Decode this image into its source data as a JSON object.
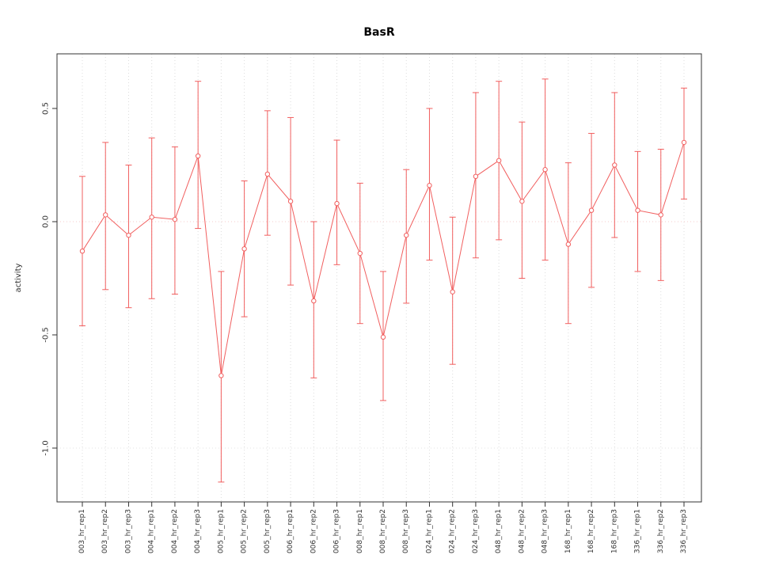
{
  "chart_data": {
    "type": "line",
    "title": "BasR",
    "xlabel": "",
    "ylabel": "activity",
    "ylim": [
      -1.25,
      0.75
    ],
    "grid": true,
    "legend": "none",
    "line_color": "#f15f5f",
    "grid_color": "#dcdcdc",
    "axis_color": "#333333",
    "yticks": [
      {
        "value": 0.5,
        "label": "0.5"
      },
      {
        "value": 0.0,
        "label": "0.0"
      },
      {
        "value": -0.5,
        "label": "-0.5"
      },
      {
        "value": -1.0,
        "label": "-1.0"
      }
    ],
    "hlines": [
      {
        "y": 0.0,
        "color": "#f6cbcb"
      },
      {
        "y": -1.0,
        "color": "#e3e3e3"
      }
    ],
    "categories": [
      "003_hr_rep1",
      "003_hr_rep2",
      "003_hr_rep3",
      "004_hr_rep1",
      "004_hr_rep2",
      "004_hr_rep3",
      "005_hr_rep1",
      "005_hr_rep2",
      "005_hr_rep3",
      "006_hr_rep1",
      "006_hr_rep2",
      "006_hr_rep3",
      "008_hr_rep1",
      "008_hr_rep2",
      "008_hr_rep3",
      "024_hr_rep1",
      "024_hr_rep2",
      "024_hr_rep3",
      "048_hr_rep1",
      "048_hr_rep2",
      "048_hr_rep3",
      "168_hr_rep1",
      "168_hr_rep2",
      "168_hr_rep3",
      "336_hr_rep1",
      "336_hr_rep2",
      "336_hr_rep3"
    ],
    "series": [
      {
        "name": "activity",
        "values": [
          -0.13,
          0.03,
          -0.06,
          0.02,
          0.01,
          0.29,
          -0.68,
          -0.12,
          0.21,
          0.09,
          -0.35,
          0.08,
          -0.14,
          -0.51,
          -0.06,
          0.16,
          -0.31,
          0.2,
          0.27,
          0.09,
          0.23,
          -0.1,
          0.05,
          0.25,
          0.05,
          0.03,
          0.35
        ],
        "upper": [
          0.2,
          0.35,
          0.25,
          0.37,
          0.33,
          0.62,
          -0.22,
          0.18,
          0.49,
          0.46,
          0.0,
          0.36,
          0.17,
          -0.22,
          0.23,
          0.5,
          0.02,
          0.57,
          0.62,
          0.44,
          0.63,
          0.26,
          0.39,
          0.57,
          0.31,
          0.32,
          0.59
        ],
        "lower": [
          -0.46,
          -0.3,
          -0.38,
          -0.34,
          -0.32,
          -0.03,
          -1.15,
          -0.42,
          -0.06,
          -0.28,
          -0.69,
          -0.19,
          -0.45,
          -0.79,
          -0.36,
          -0.17,
          -0.63,
          -0.16,
          -0.08,
          -0.25,
          -0.17,
          -0.45,
          -0.29,
          -0.07,
          -0.22,
          -0.26,
          0.1
        ]
      }
    ]
  }
}
